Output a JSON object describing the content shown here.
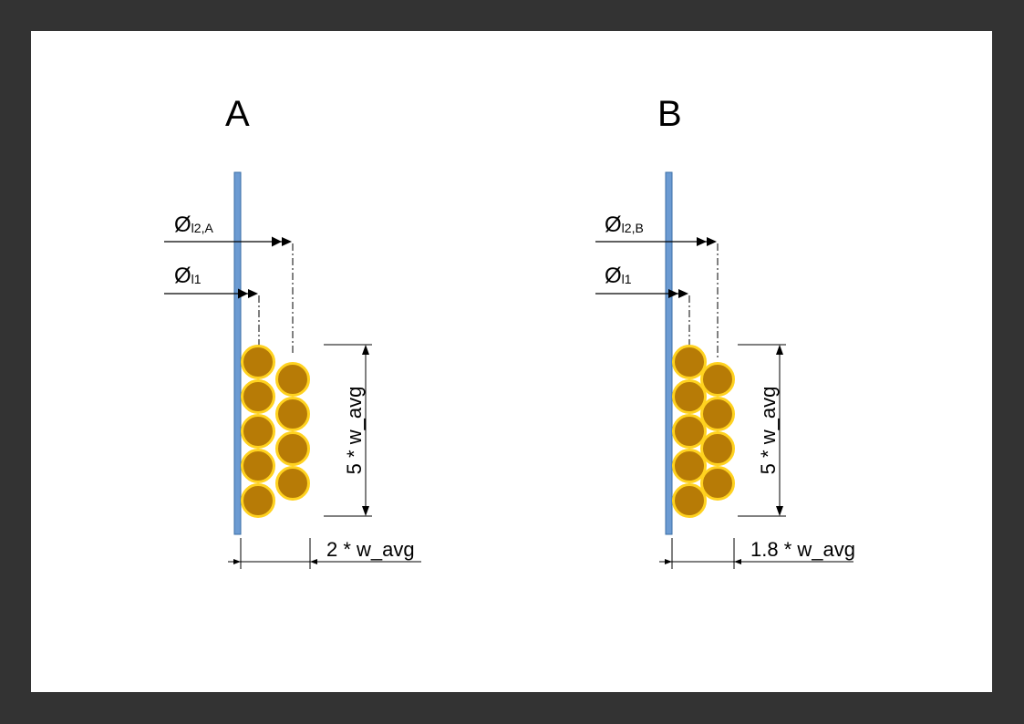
{
  "panels": [
    {
      "title": "A",
      "phi_outer_symbol": "Ø",
      "phi_outer_subscript": "l2,A",
      "phi_inner_symbol": "Ø",
      "phi_inner_subscript": "l1",
      "height_label": "5 * w_avg",
      "width_label": "2 * w_avg"
    },
    {
      "title": "B",
      "phi_outer_symbol": "Ø",
      "phi_outer_subscript": "l2,B",
      "phi_inner_symbol": "Ø",
      "phi_inner_subscript": "l1",
      "height_label": "5 * w_avg",
      "width_label": "1.8 * w_avg"
    }
  ],
  "colors": {
    "background": "#333333",
    "page": "#ffffff",
    "wall_fill": "#6c9bd2",
    "wall_stroke": "#3a6ea5",
    "wire_fill": "#b77b06",
    "wire_stroke": "#ffd21f",
    "line": "#000000"
  }
}
